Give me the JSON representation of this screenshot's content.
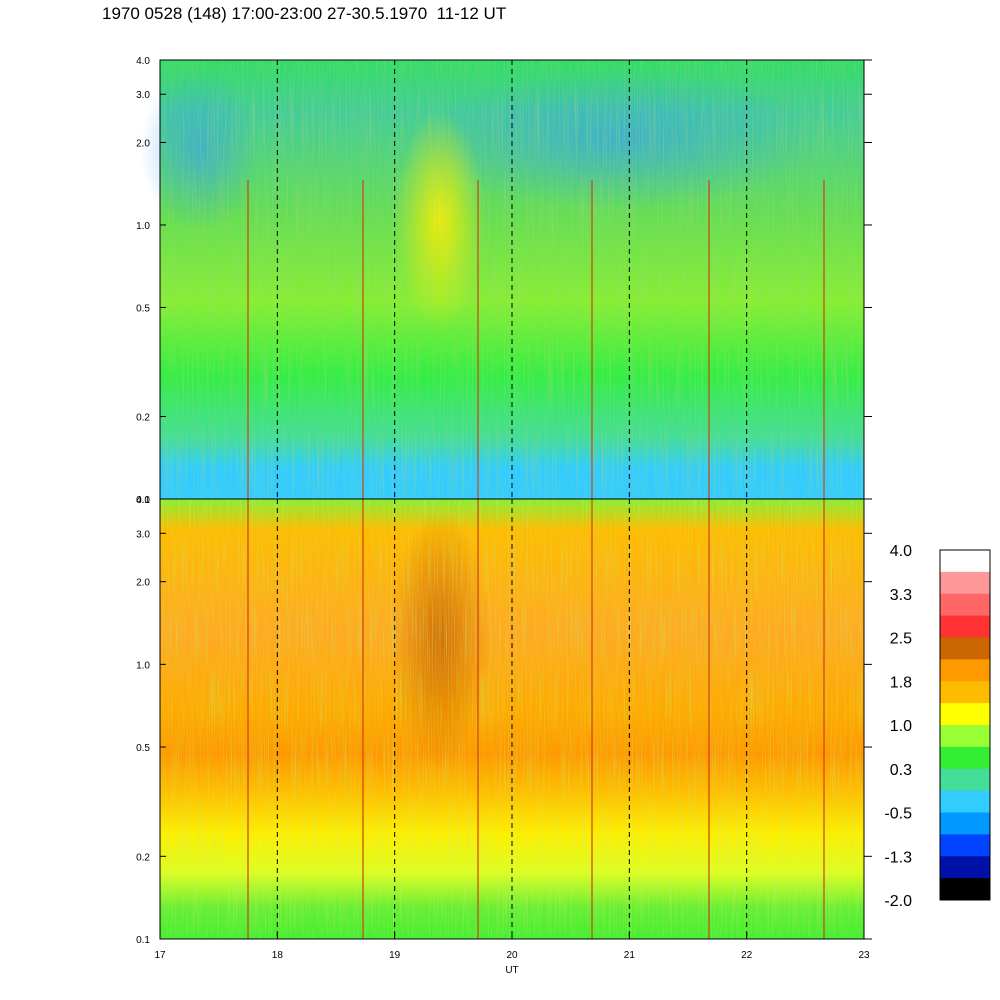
{
  "title": "1970 0528 (148) 17:00-23:00 27-30.5.1970  11-12 UT",
  "chart_data": {
    "type": "heatmap",
    "panels": [
      {
        "name": "",
        "ylim": [
          0.1,
          4.0
        ],
        "yscale": "log",
        "yticks": [
          0.1,
          0.2,
          0.5,
          1.0,
          2.0,
          3.0,
          4.0
        ],
        "ytick_labels": [
          "0.1",
          "0.2",
          "0.5",
          "1.0",
          "2.0",
          "3.0",
          "4.0"
        ]
      },
      {
        "name": "",
        "ylim": [
          0.1,
          4.0
        ],
        "yscale": "log",
        "yticks": [
          0.1,
          0.2,
          0.5,
          1.0,
          2.0,
          3.0,
          4.0
        ],
        "ytick_labels": [
          "0.1",
          "0.2",
          "0.5",
          "1.0",
          "2.0",
          "3.0",
          "4.0"
        ]
      }
    ],
    "xlabel": "UT",
    "xlim": [
      17,
      23
    ],
    "xticks": [
      17,
      18,
      19,
      20,
      21,
      22,
      23
    ],
    "xtick_labels": [
      "17",
      "18",
      "19",
      "20",
      "21",
      "22",
      "23"
    ],
    "grid": "dashed vertical at each hour",
    "colorbar": {
      "range": [
        -2.0,
        4.0
      ],
      "labels": [
        "4.0",
        "3.3",
        "2.5",
        "1.8",
        "1.0",
        "0.3",
        "-0.5",
        "-1.3",
        "-2.0"
      ],
      "colors": [
        "#ffffff",
        "#ff9999",
        "#ff6666",
        "#ff3333",
        "#cc6600",
        "#ff9900",
        "#ffbb00",
        "#ffff00",
        "#99ff33",
        "#33ee33",
        "#44dd99",
        "#33ccff",
        "#0099ff",
        "#0044ff",
        "#0011aa",
        "#000000"
      ]
    }
  }
}
